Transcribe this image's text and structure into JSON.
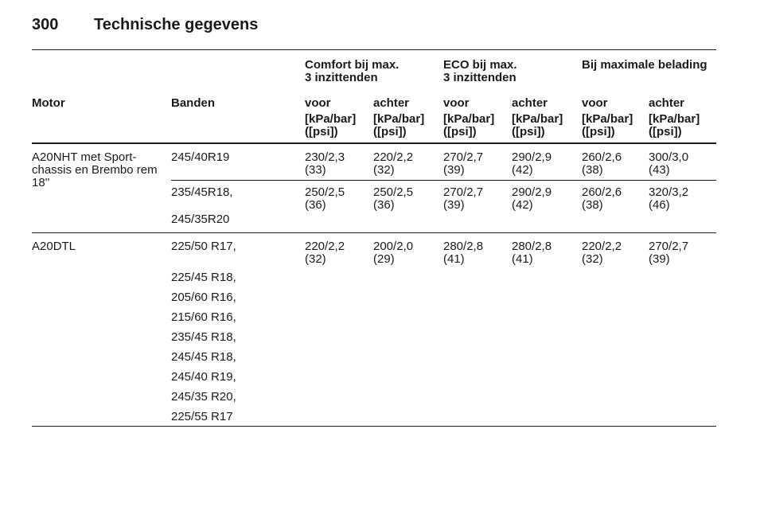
{
  "header": {
    "page_number": "300",
    "title": "Technische gegevens"
  },
  "table": {
    "group_headers": [
      [
        "Comfort bij max.",
        "3 inzittenden"
      ],
      [
        "ECO bij max.",
        "3 inzittenden"
      ],
      [
        "Bij maximale belading"
      ]
    ],
    "columns": [
      "Motor",
      "Banden",
      "voor",
      "achter",
      "voor",
      "achter",
      "voor",
      "achter"
    ],
    "units": [
      [
        "[kPa/bar]",
        "([psi])"
      ],
      [
        "[kPa/bar]",
        "([psi])"
      ],
      [
        "[kPa/bar]",
        "([psi])"
      ],
      [
        "[kPa/bar]",
        "([psi])"
      ],
      [
        "[kPa/bar]",
        "([psi])"
      ],
      [
        "[kPa/bar]",
        "([psi])"
      ]
    ],
    "rows": [
      {
        "motor": [
          "A20NHT met Sport-",
          "chassis en Brembo rem",
          "18''"
        ],
        "groups": [
          {
            "tires": [
              "245/40R19"
            ],
            "values": [
              [
                "230/2,3",
                "(33)"
              ],
              [
                "220/2,2",
                "(32)"
              ],
              [
                "270/2,7",
                "(39)"
              ],
              [
                "290/2,9",
                "(42)"
              ],
              [
                "260/2,6",
                "(38)"
              ],
              [
                "300/3,0",
                "(43)"
              ]
            ]
          },
          {
            "tires": [
              "235/45R18,",
              "245/35R20"
            ],
            "values": [
              [
                "250/2,5",
                "(36)"
              ],
              [
                "250/2,5",
                "(36)"
              ],
              [
                "270/2,7",
                "(39)"
              ],
              [
                "290/2,9",
                "(42)"
              ],
              [
                "260/2,6",
                "(38)"
              ],
              [
                "320/3,2",
                "(46)"
              ]
            ]
          }
        ]
      },
      {
        "motor": [
          "A20DTL"
        ],
        "groups": [
          {
            "tires": [
              "225/50 R17,",
              "225/45 R18,",
              "205/60 R16,",
              "215/60 R16,",
              "235/45 R18,",
              "245/45 R18,",
              "245/40 R19,",
              "245/35 R20,",
              "225/55 R17"
            ],
            "values": [
              [
                "220/2,2",
                "(32)"
              ],
              [
                "200/2,0",
                "(29)"
              ],
              [
                "280/2,8",
                "(41)"
              ],
              [
                "280/2,8",
                "(41)"
              ],
              [
                "220/2,2",
                "(32)"
              ],
              [
                "270/2,7",
                "(39)"
              ]
            ]
          }
        ]
      }
    ]
  }
}
